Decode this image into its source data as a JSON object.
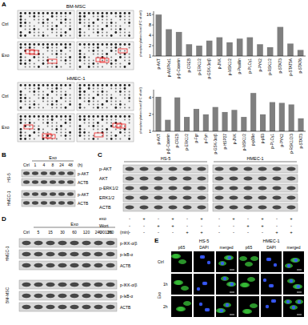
{
  "figure": {
    "panel_labels": [
      "A",
      "B",
      "C",
      "D",
      "E"
    ],
    "A": {
      "arrays": [
        {
          "cell": "BM-MSC",
          "rows": [
            "Ctrl",
            "Exo"
          ]
        },
        {
          "cell": "HMEC-1",
          "rows": [
            "Ctrl",
            "Exo"
          ]
        }
      ]
    },
    "B": {
      "treatment": "Exo",
      "lanes": [
        "Ctrl",
        "1",
        "4",
        "8",
        "24",
        "48"
      ],
      "unit": "(h)",
      "blocks": [
        {
          "cell": "HS-5",
          "rows": [
            "p-AKT",
            "ACTB"
          ]
        },
        {
          "cell": "HMEC-1",
          "rows": [
            "p-AKT",
            "ACTB"
          ]
        }
      ]
    },
    "C": {
      "cells": [
        "HS-5",
        "HMEC-1"
      ],
      "rows": [
        "p-AKT",
        "AKT",
        "p-ERK1/2",
        "ERK1/2",
        "ACTB"
      ],
      "conditions": [
        {
          "name": "exo",
          "signs": [
            "-",
            "+",
            "-",
            "+",
            "-",
            "+",
            "-",
            "+",
            "-",
            "+",
            "-",
            "+"
          ]
        },
        {
          "name": "Wort",
          "signs": [
            "-",
            "-",
            "+",
            "+",
            "-",
            "-",
            "-",
            "-",
            "+",
            "+",
            "-",
            "-"
          ]
        },
        {
          "name": "U0126",
          "signs": [
            "-",
            "-",
            "-",
            "-",
            "+",
            "+",
            "-",
            "-",
            "-",
            "-",
            "+",
            "+"
          ]
        }
      ]
    },
    "D": {
      "treatment": "Exo",
      "lanes": [
        "Ctrl",
        "5",
        "15",
        "30",
        "60",
        "120",
        "240",
        "360"
      ],
      "unit": "(min)",
      "blocks": [
        {
          "cell": "HMEC-1",
          "rows": [
            "p-IKK-α/β",
            "p-IκB-α",
            "ACTB"
          ]
        },
        {
          "cell": "BM-MSC",
          "rows": [
            "p-IKK-α/β",
            "p-IκB-α",
            "ACTB"
          ]
        }
      ]
    },
    "E": {
      "cells": [
        "HS-5",
        "HMEC-1"
      ],
      "channels": [
        "p65",
        "DAPI",
        "merged"
      ],
      "rows": [
        "Ctrl",
        "1h",
        "2h"
      ],
      "treatment": "Exo"
    }
  },
  "chart_data": [
    {
      "type": "bar",
      "y_label": "phosphorylation level (FC of ctrl)",
      "categories": [
        "p-AKT",
        "p-AMPKα1",
        "p-β-Catenin",
        "p-CREB",
        "p-ERK1/2",
        "p-GSK-3α/β",
        "p-JNK",
        "p-MSK1/2",
        "p-Paxillin",
        "p-PLCγ1",
        "p-PYK2",
        "p-RSK1/2",
        "p-STAT3",
        "p-STAT5A",
        "p-STAT6"
      ],
      "values": [
        16,
        6,
        5,
        2.2,
        2,
        2.8,
        3.5,
        2.5,
        3.2,
        3.5,
        2.2,
        1.8,
        7,
        2.3,
        1.5
      ],
      "color": "#7f7f7f",
      "log": "y",
      "ylim": [
        1,
        20
      ],
      "yticks": [
        1,
        2,
        4,
        8,
        16
      ],
      "grid": false
    },
    {
      "type": "bar",
      "y_label": "phosphorylation level (FC of ctrl)",
      "categories": [
        "p-AKT",
        "p-β-Catenin",
        "p-CREB",
        "p-ERK1/2",
        "p-Fgr",
        "p-Fyn",
        "p-GSK-3α/β",
        "p-HSP27",
        "p-JNK",
        "p-MSK1/2",
        "p-p38α",
        "p-p53",
        "p-PLCγ1",
        "p-PYK2",
        "p-RSK1/2/3",
        "p-STAT3"
      ],
      "values": [
        4.1,
        1.6,
        4,
        1.8,
        2.5,
        2,
        2.7,
        2.2,
        2.4,
        1.8,
        4.8,
        2,
        3.3,
        3.2,
        3,
        1.7
      ],
      "color": "#7f7f7f",
      "log": "y",
      "ylim": [
        1,
        5.5
      ],
      "yticks": [
        1,
        2,
        4
      ],
      "grid": false
    }
  ]
}
